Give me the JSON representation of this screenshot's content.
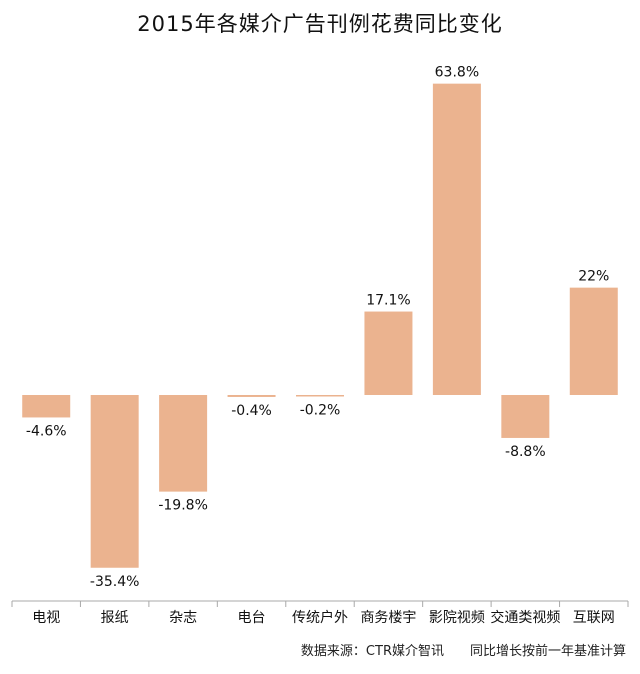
{
  "chart_data": {
    "type": "bar",
    "title": "2015年各媒介广告刊例花费同比变化",
    "categories": [
      "电视",
      "报纸",
      "杂志",
      "电台",
      "传统户外",
      "商务楼宇",
      "影院视频",
      "交通类视频",
      "互联网"
    ],
    "values": [
      -4.6,
      -35.4,
      -19.8,
      -0.4,
      -0.2,
      17.1,
      63.8,
      -8.8,
      22
    ],
    "data_labels": [
      "-4.6%",
      "-35.4%",
      "-19.8%",
      "-0.4%",
      "-0.2%",
      "17.1%",
      "63.8%",
      "-8.8%",
      "22%"
    ],
    "xlabel": "",
    "ylabel": "",
    "ylim": [
      -41,
      66
    ],
    "bar_color": "#ebb38f",
    "axis_color": "#a9a9a9",
    "grid": false,
    "legend": "none"
  },
  "source_note": "数据来源：CTR媒介智讯",
  "method_note": "同比增长按前一年基准计算"
}
